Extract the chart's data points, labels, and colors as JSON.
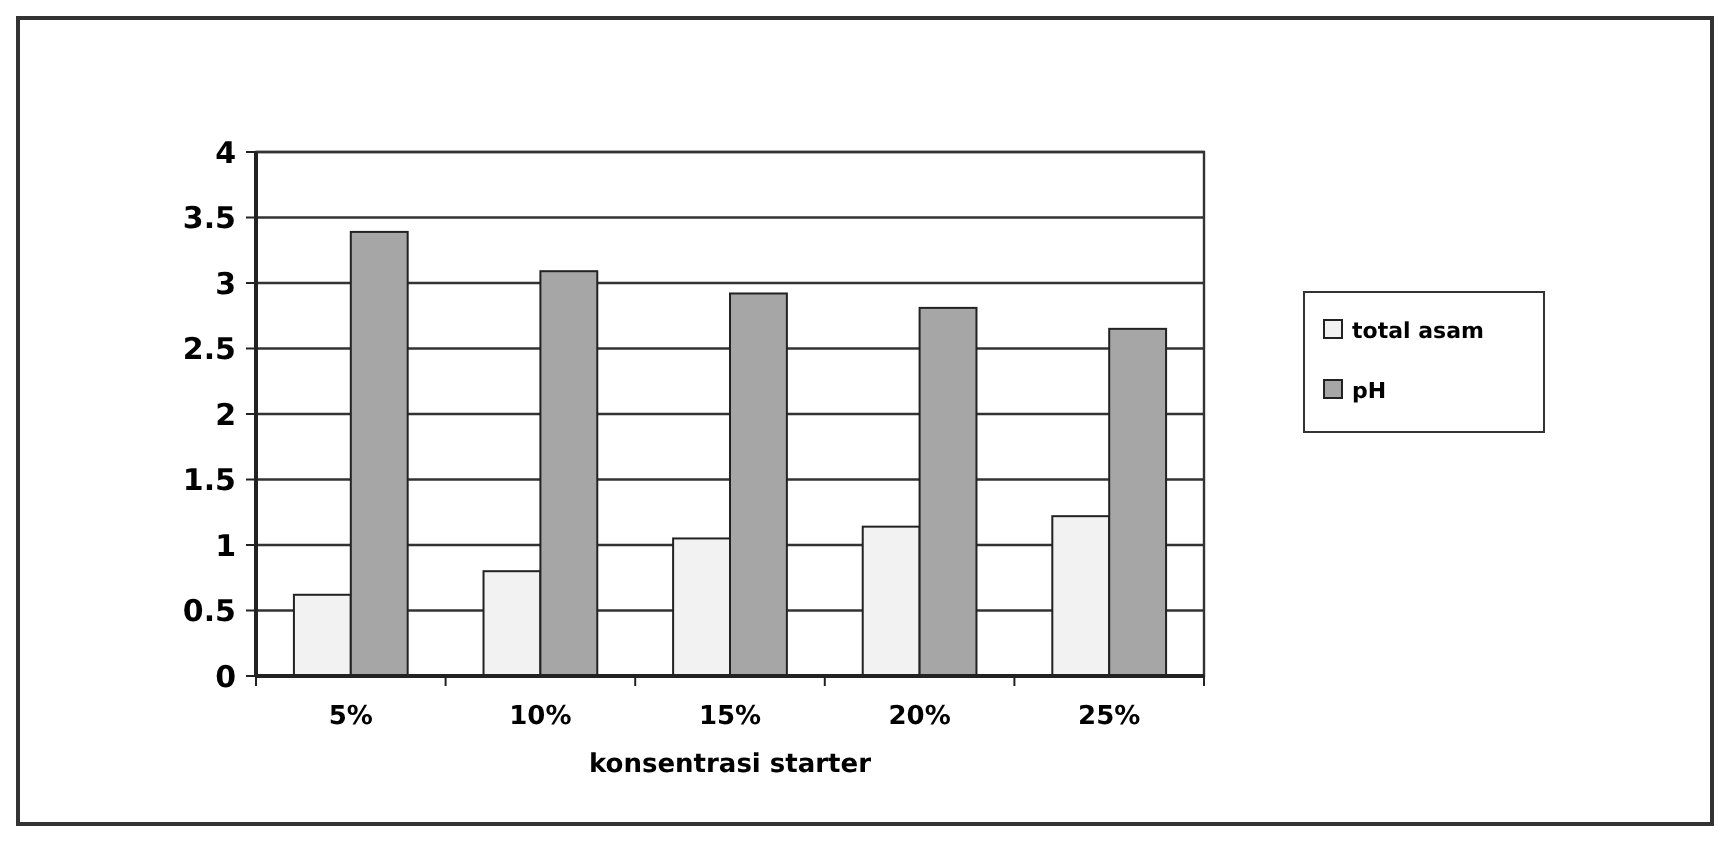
{
  "chart_data": {
    "type": "bar",
    "xlabel": "konsentrasi starter",
    "categories": [
      "5%",
      "10%",
      "15%",
      "20%",
      "25%"
    ],
    "series": [
      {
        "name": "total asam",
        "color": "#f2f2f2",
        "values": [
          0.62,
          0.8,
          1.05,
          1.14,
          1.22
        ]
      },
      {
        "name": "pH",
        "color": "#a6a6a6",
        "values": [
          3.39,
          3.09,
          2.92,
          2.81,
          2.65
        ]
      }
    ],
    "ylim": [
      0,
      4
    ],
    "yticks": [
      0,
      0.5,
      1,
      1.5,
      2,
      2.5,
      3,
      3.5,
      4
    ],
    "grid": "y",
    "legend": "right"
  }
}
